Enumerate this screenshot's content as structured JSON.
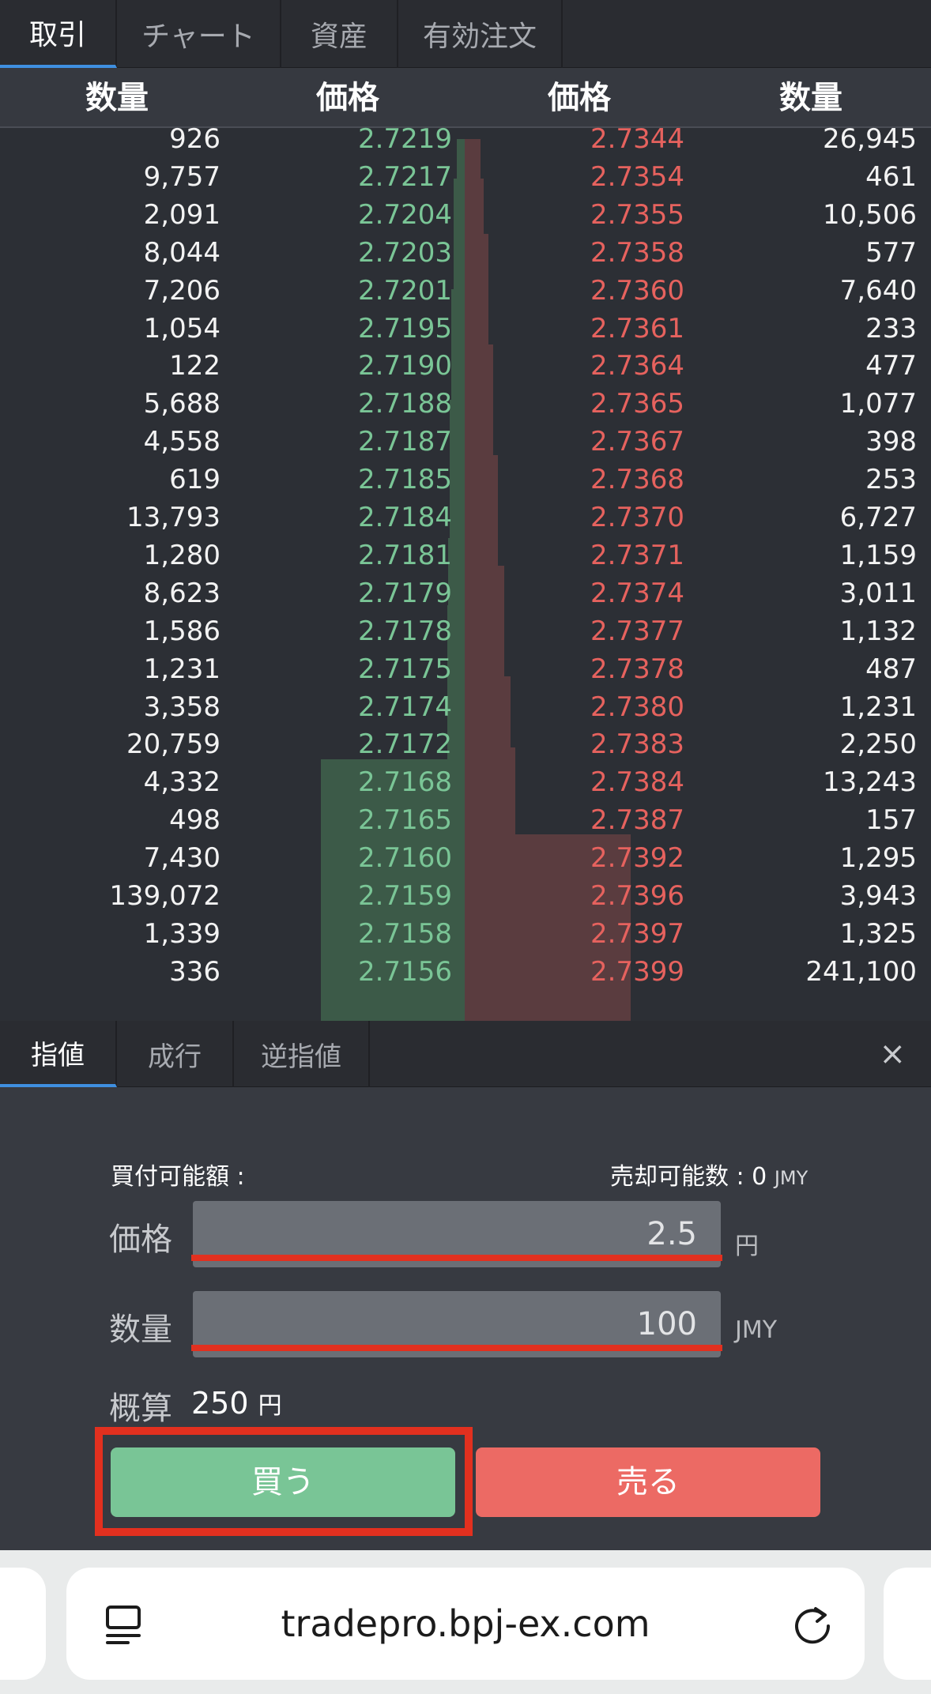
{
  "top_tabs": [
    "取引",
    "チャート",
    "資産",
    "有効注文"
  ],
  "book": {
    "headers": {
      "bid_qty": "数量",
      "bid_price": "価格",
      "ask_price": "価格",
      "ask_qty": "数量"
    },
    "rows": [
      {
        "bid_qty": "926",
        "bid_price": "2.7219",
        "ask_price": "2.7344",
        "ask_qty": "26,945"
      },
      {
        "bid_qty": "9,757",
        "bid_price": "2.7217",
        "ask_price": "2.7354",
        "ask_qty": "461"
      },
      {
        "bid_qty": "2,091",
        "bid_price": "2.7204",
        "ask_price": "2.7355",
        "ask_qty": "10,506"
      },
      {
        "bid_qty": "8,044",
        "bid_price": "2.7203",
        "ask_price": "2.7358",
        "ask_qty": "577"
      },
      {
        "bid_qty": "7,206",
        "bid_price": "2.7201",
        "ask_price": "2.7360",
        "ask_qty": "7,640"
      },
      {
        "bid_qty": "1,054",
        "bid_price": "2.7195",
        "ask_price": "2.7361",
        "ask_qty": "233"
      },
      {
        "bid_qty": "122",
        "bid_price": "2.7190",
        "ask_price": "2.7364",
        "ask_qty": "477"
      },
      {
        "bid_qty": "5,688",
        "bid_price": "2.7188",
        "ask_price": "2.7365",
        "ask_qty": "1,077"
      },
      {
        "bid_qty": "4,558",
        "bid_price": "2.7187",
        "ask_price": "2.7367",
        "ask_qty": "398"
      },
      {
        "bid_qty": "619",
        "bid_price": "2.7185",
        "ask_price": "2.7368",
        "ask_qty": "253"
      },
      {
        "bid_qty": "13,793",
        "bid_price": "2.7184",
        "ask_price": "2.7370",
        "ask_qty": "6,727"
      },
      {
        "bid_qty": "1,280",
        "bid_price": "2.7181",
        "ask_price": "2.7371",
        "ask_qty": "1,159"
      },
      {
        "bid_qty": "8,623",
        "bid_price": "2.7179",
        "ask_price": "2.7374",
        "ask_qty": "3,011"
      },
      {
        "bid_qty": "1,586",
        "bid_price": "2.7178",
        "ask_price": "2.7377",
        "ask_qty": "1,132"
      },
      {
        "bid_qty": "1,231",
        "bid_price": "2.7175",
        "ask_price": "2.7378",
        "ask_qty": "487"
      },
      {
        "bid_qty": "3,358",
        "bid_price": "2.7174",
        "ask_price": "2.7380",
        "ask_qty": "1,231"
      },
      {
        "bid_qty": "20,759",
        "bid_price": "2.7172",
        "ask_price": "2.7383",
        "ask_qty": "2,250"
      },
      {
        "bid_qty": "4,332",
        "bid_price": "2.7168",
        "ask_price": "2.7384",
        "ask_qty": "13,243"
      },
      {
        "bid_qty": "498",
        "bid_price": "2.7165",
        "ask_price": "2.7387",
        "ask_qty": "157"
      },
      {
        "bid_qty": "7,430",
        "bid_price": "2.7160",
        "ask_price": "2.7392",
        "ask_qty": "1,295"
      },
      {
        "bid_qty": "139,072",
        "bid_price": "2.7159",
        "ask_price": "2.7396",
        "ask_qty": "3,943"
      },
      {
        "bid_qty": "1,339",
        "bid_price": "2.7158",
        "ask_price": "2.7397",
        "ask_qty": "1,325"
      },
      {
        "bid_qty": "336",
        "bid_price": "2.7156",
        "ask_price": "2.7399",
        "ask_qty": "241,100"
      }
    ]
  },
  "order": {
    "tabs": [
      "指値",
      "成行",
      "逆指値"
    ],
    "close": "×",
    "buy_available_label": "買付可能額 :",
    "sell_available_label": "売却可能数 : 0",
    "sell_available_unit": "JMY",
    "price_label": "価格",
    "price_value": "2.5",
    "price_unit": "円",
    "qty_label": "数量",
    "qty_value": "100",
    "qty_unit": "JMY",
    "estimate_label": "概算",
    "estimate_value": "250",
    "estimate_unit": "円",
    "buy_label": "買う",
    "sell_label": "売る"
  },
  "browser": {
    "url": "tradepro.bpj-ex.com"
  },
  "colors": {
    "bid_green": "#7ac596",
    "ask_red": "#e6625e",
    "buy_button": "#79c596",
    "sell_button": "#ec6a64",
    "highlight_red": "#e2301f",
    "tab_accent": "#3f8fe0"
  }
}
